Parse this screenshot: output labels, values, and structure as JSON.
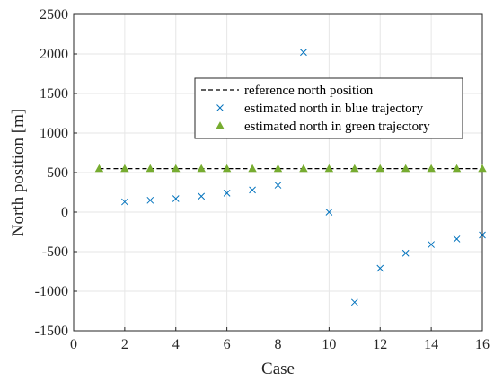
{
  "chart_data": {
    "type": "scatter",
    "xlabel": "Case",
    "ylabel": "North position [m]",
    "xlim": [
      0,
      16
    ],
    "ylim": [
      -1500,
      2500
    ],
    "xticks": [
      0,
      2,
      4,
      6,
      8,
      10,
      12,
      14,
      16
    ],
    "xtick_labels": [
      "0",
      "2",
      "4",
      "6",
      "8",
      "10",
      "12",
      "14",
      "16"
    ],
    "yticks": [
      -1500,
      -1000,
      -500,
      0,
      500,
      1000,
      1500,
      2000,
      2500
    ],
    "ytick_labels": [
      "-1500",
      "-1000",
      "-500",
      "0",
      "500",
      "1000",
      "1500",
      "2000",
      "2500"
    ],
    "grid": true,
    "legend_position": "upper-right",
    "series": [
      {
        "name": "reference north position",
        "style": "dashed-line",
        "color": "#000000",
        "x": [
          1,
          16
        ],
        "y": [
          550,
          550
        ]
      },
      {
        "name": "estimated north in blue trajectory",
        "style": "x-marker",
        "color": "#0072BD",
        "x": [
          2,
          3,
          4,
          5,
          6,
          7,
          8,
          9,
          10,
          11,
          12,
          13,
          14,
          15,
          16
        ],
        "y": [
          130,
          150,
          170,
          200,
          240,
          280,
          340,
          2020,
          0,
          -1140,
          -710,
          -520,
          -410,
          -340,
          -290
        ]
      },
      {
        "name": "estimated north in green trajectory",
        "style": "triangle-marker",
        "color": "#77AC30",
        "x": [
          1,
          2,
          3,
          4,
          5,
          6,
          7,
          8,
          9,
          10,
          11,
          12,
          13,
          14,
          15,
          16
        ],
        "y": [
          550,
          550,
          550,
          550,
          550,
          550,
          550,
          550,
          550,
          550,
          550,
          550,
          550,
          550,
          550,
          550
        ]
      }
    ]
  }
}
